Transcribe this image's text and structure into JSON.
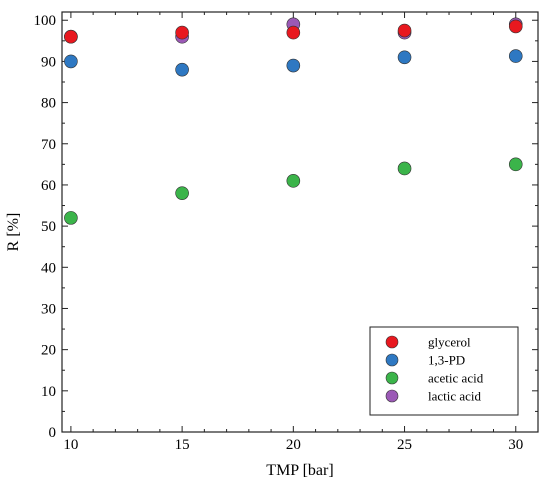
{
  "chart_data": {
    "type": "scatter",
    "title": "",
    "xlabel": "TMP [bar]",
    "ylabel": "R [%]",
    "xlim": [
      9.6,
      31.0
    ],
    "ylim": [
      0,
      102
    ],
    "xticks": [
      10,
      15,
      20,
      25,
      30
    ],
    "yticks": [
      0,
      10,
      20,
      30,
      40,
      50,
      60,
      70,
      80,
      90,
      100
    ],
    "grid": false,
    "legend_position": "bottom-right",
    "series": [
      {
        "name": "lactic acid",
        "color": "#9b59b6",
        "x": [
          10,
          15,
          20,
          25,
          30
        ],
        "y": [
          96,
          96,
          99,
          97,
          99
        ]
      },
      {
        "name": "glycerol",
        "color": "#e8181f",
        "x": [
          10,
          15,
          20,
          25,
          30
        ],
        "y": [
          96,
          97,
          97,
          97.5,
          98.5
        ]
      },
      {
        "name": "1,3-PD",
        "color": "#2e78c2",
        "x": [
          10,
          15,
          20,
          25,
          30
        ],
        "y": [
          90,
          88,
          89,
          91,
          91.3
        ]
      },
      {
        "name": "acetic acid",
        "color": "#3bb44a",
        "x": [
          10,
          15,
          20,
          25,
          30
        ],
        "y": [
          52,
          58,
          61,
          64,
          65
        ]
      }
    ],
    "legend_order": [
      "glycerol",
      "1,3-PD",
      "acetic acid",
      "lactic acid"
    ]
  }
}
